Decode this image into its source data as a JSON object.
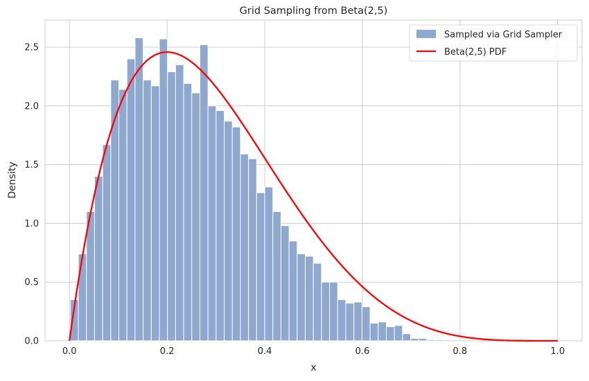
{
  "chart_data": {
    "type": "bar",
    "title": "Grid Sampling from Beta(2,5)",
    "xlabel": "x",
    "ylabel": "Density",
    "xlim": [
      -0.05,
      1.05
    ],
    "ylim": [
      0,
      2.73
    ],
    "xticks": [
      0.0,
      0.2,
      0.4,
      0.6,
      0.8,
      1.0
    ],
    "xtick_labels": [
      "0.0",
      "0.2",
      "0.4",
      "0.6",
      "0.8",
      "1.0"
    ],
    "yticks": [
      0.0,
      0.5,
      1.0,
      1.5,
      2.0,
      2.5
    ],
    "ytick_labels": [
      "0.0",
      "0.5",
      "1.0",
      "1.5",
      "2.0",
      "2.5"
    ],
    "grid": true,
    "legend_position": "top-right",
    "histogram": {
      "name": "Sampled via Grid Sampler",
      "color": "#8fa8cf",
      "bin_edges_start": 0.0016,
      "bin_width": 0.0166,
      "values": [
        0.35,
        0.74,
        1.1,
        1.4,
        1.67,
        2.22,
        2.14,
        2.4,
        2.58,
        2.22,
        2.17,
        2.57,
        2.29,
        2.35,
        2.19,
        2.11,
        2.52,
        2.0,
        1.96,
        1.87,
        1.82,
        1.59,
        1.55,
        1.26,
        1.31,
        1.1,
        0.98,
        0.85,
        0.74,
        0.72,
        0.66,
        0.5,
        0.5,
        0.35,
        0.32,
        0.33,
        0.29,
        0.15,
        0.16,
        0.12,
        0.13,
        0.06,
        0.02,
        0.02,
        0.01,
        0.01
      ]
    },
    "series": [
      {
        "name": "Beta(2,5) PDF",
        "type": "line",
        "color": "#ff0000",
        "function": "30*x*(1-x)^4",
        "x_range": [
          0.0,
          1.0
        ]
      }
    ]
  }
}
